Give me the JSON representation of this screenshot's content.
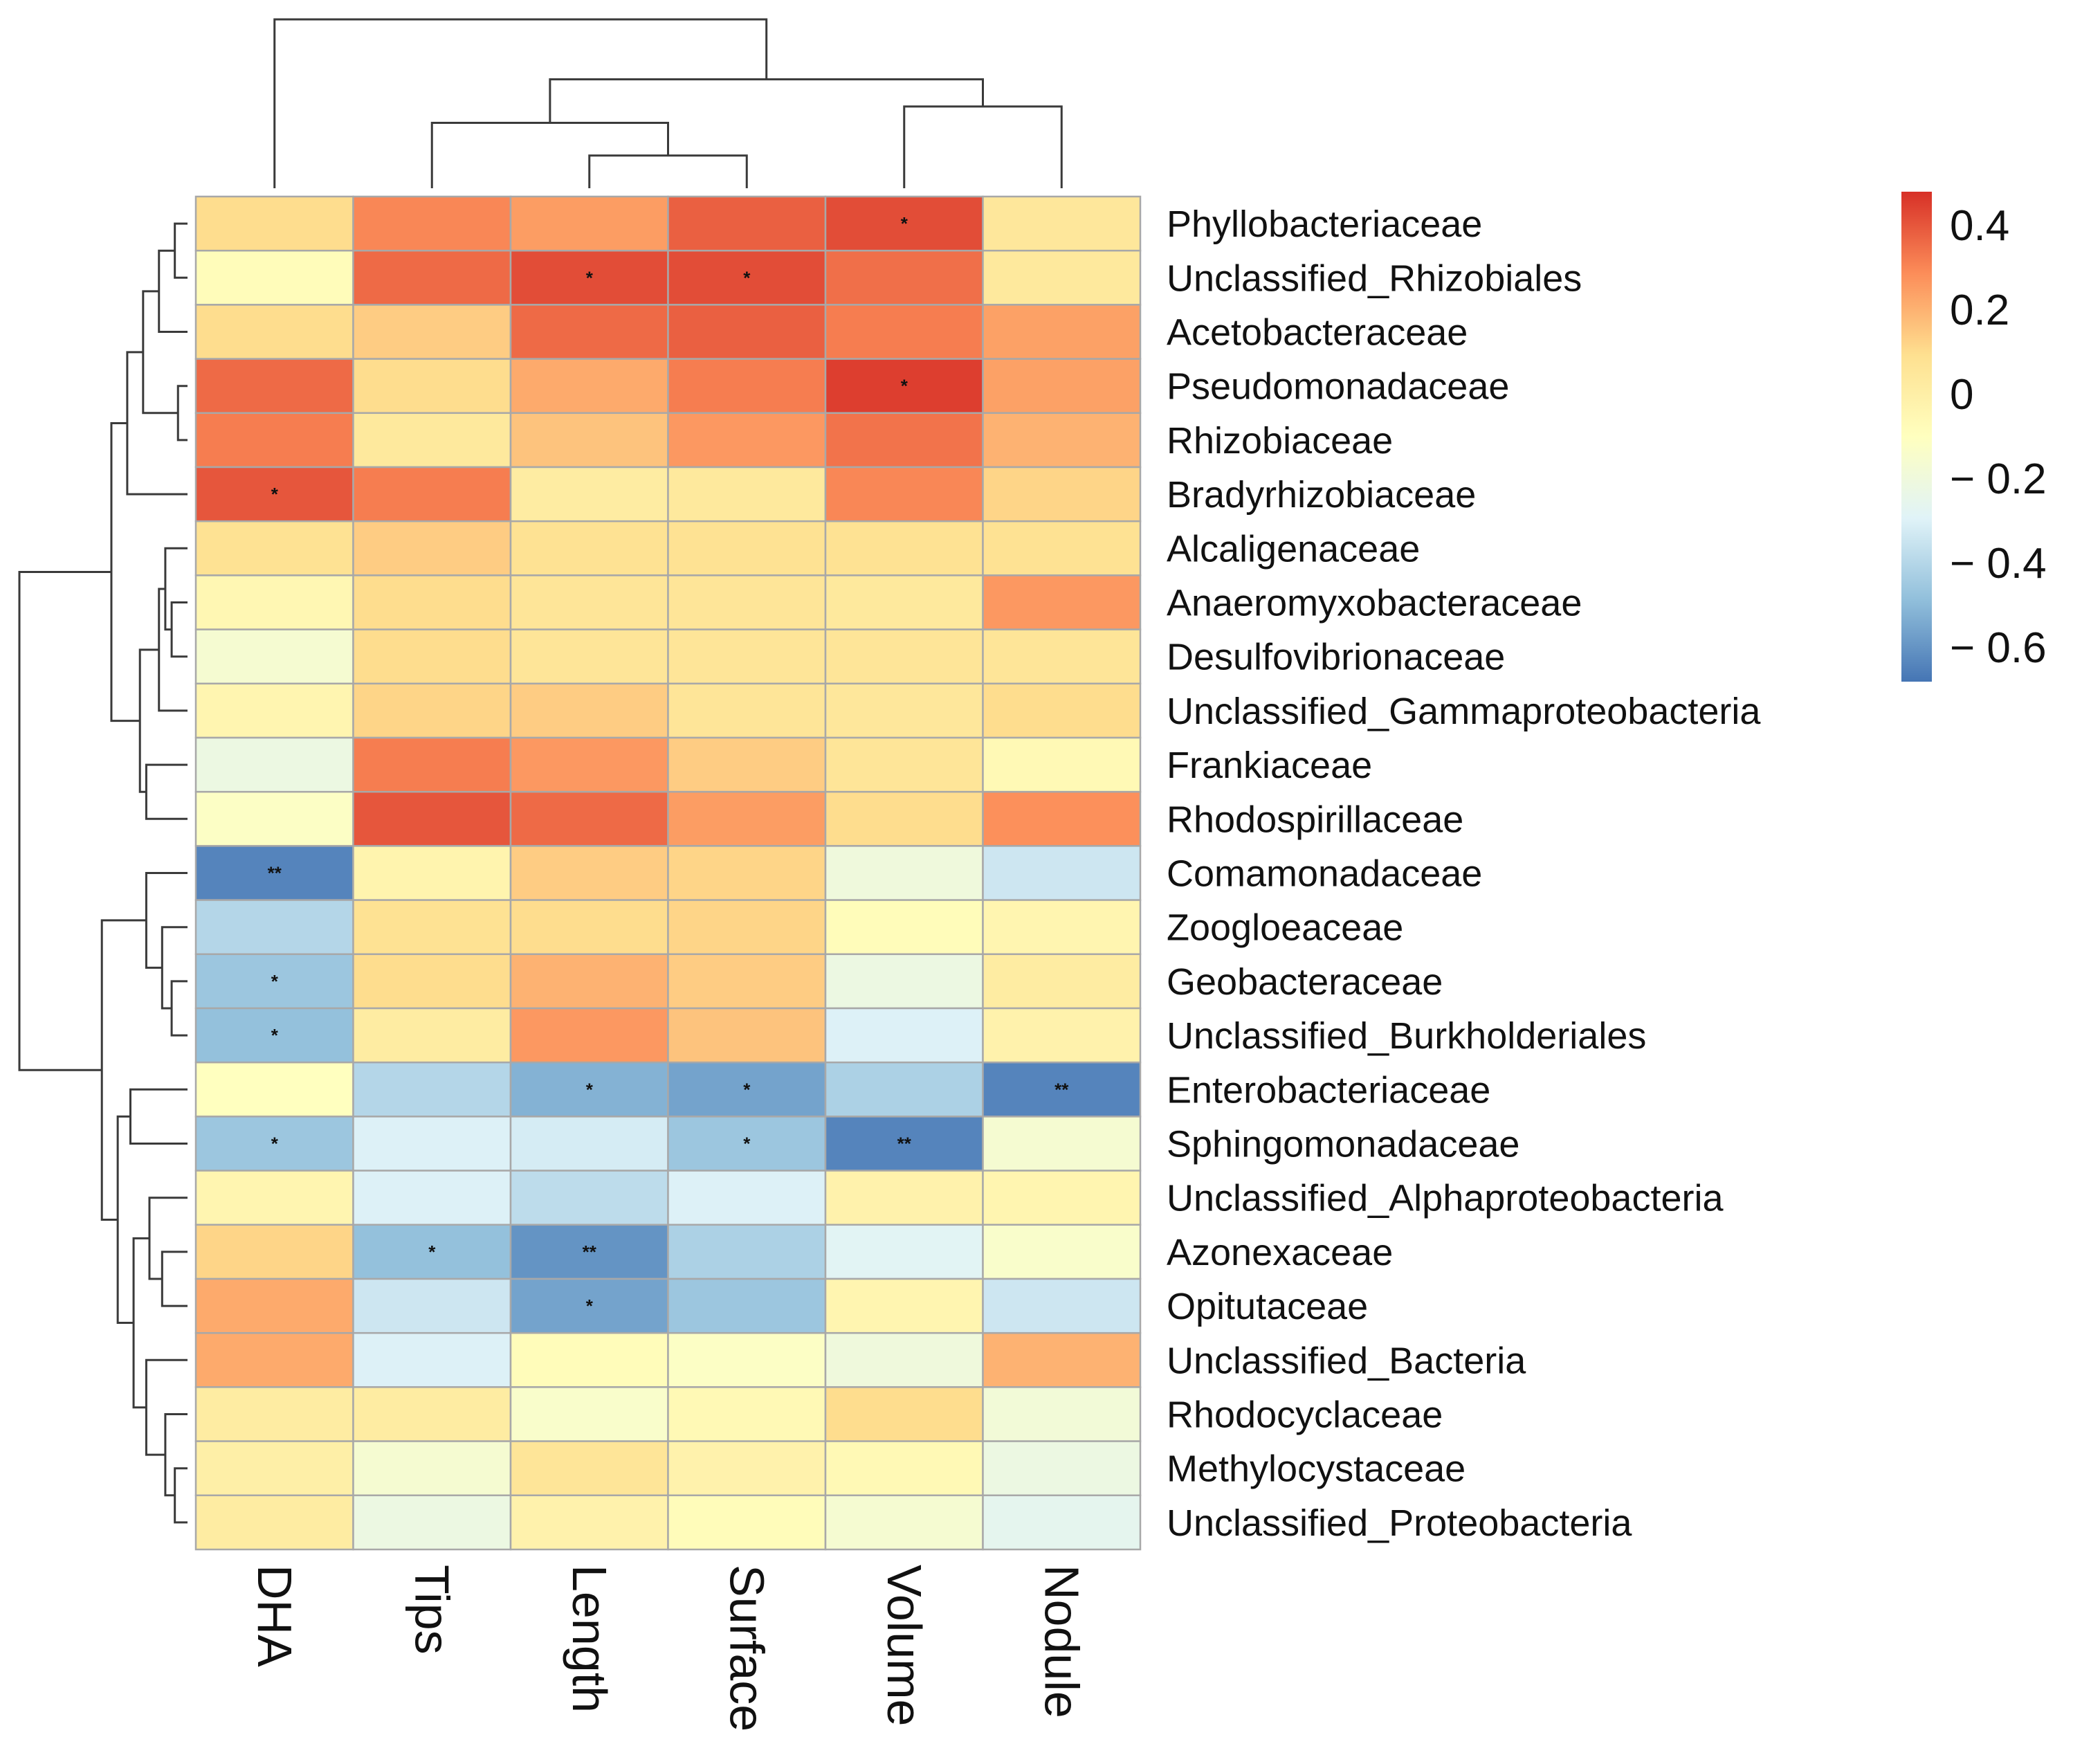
{
  "chart_data": {
    "type": "heatmap",
    "title": "",
    "columns": [
      "DHA",
      "Tips",
      "Length",
      "Surface",
      "Volume",
      "Nodule"
    ],
    "rows": [
      "Phyllobacteriaceae",
      "Unclassified_Rhizobiales",
      "Acetobacteraceae",
      "Pseudomonadaceae",
      "Rhizobiaceae",
      "Bradyrhizobiaceae",
      "Alcaligenaceae",
      "Anaeromyxobacteraceae",
      "Desulfovibrionaceae",
      "Unclassified_Gammaproteobacteria",
      "Frankiaceae",
      "Rhodospirillaceae",
      "Comamonadaceae",
      "Zoogloeaceae",
      "Geobacteraceae",
      "Unclassified_Burkholderiales",
      "Enterobacteriaceae",
      "Sphingomonadaceae",
      "Unclassified_Alphaproteobacteria",
      "Azonexaceae",
      "Opitutaceae",
      "Unclassified_Bacteria",
      "Rhodocyclaceae",
      "Methylocystaceae",
      "Unclassified_Proteobacteria"
    ],
    "values": [
      [
        0.1,
        0.3,
        0.25,
        0.38,
        0.42,
        0.05
      ],
      [
        -0.08,
        0.36,
        0.42,
        0.42,
        0.35,
        0.04
      ],
      [
        0.1,
        0.14,
        0.36,
        0.38,
        0.32,
        0.24
      ],
      [
        0.36,
        0.1,
        0.22,
        0.32,
        0.45,
        0.24
      ],
      [
        0.32,
        0.04,
        0.16,
        0.26,
        0.34,
        0.2
      ],
      [
        0.4,
        0.32,
        0.02,
        0.04,
        0.3,
        0.12
      ],
      [
        0.08,
        0.14,
        0.08,
        0.08,
        0.08,
        0.08
      ],
      [
        -0.05,
        0.1,
        0.06,
        0.06,
        0.04,
        0.26
      ],
      [
        -0.16,
        0.1,
        0.06,
        0.06,
        0.06,
        0.06
      ],
      [
        -0.04,
        0.12,
        0.14,
        0.06,
        0.05,
        0.1
      ],
      [
        -0.22,
        0.32,
        0.26,
        0.14,
        0.06,
        -0.06
      ],
      [
        -0.12,
        0.4,
        0.36,
        0.25,
        0.1,
        0.28
      ],
      [
        -0.64,
        -0.03,
        0.14,
        0.12,
        -0.2,
        -0.34
      ],
      [
        -0.4,
        0.08,
        0.1,
        0.12,
        -0.08,
        -0.04
      ],
      [
        -0.46,
        0.1,
        0.2,
        0.14,
        -0.22,
        0.02
      ],
      [
        -0.48,
        0.02,
        0.26,
        0.16,
        -0.3,
        -0.02
      ],
      [
        -0.1,
        -0.4,
        -0.52,
        -0.56,
        -0.42,
        -0.64
      ],
      [
        -0.46,
        -0.3,
        -0.32,
        -0.46,
        -0.64,
        -0.16
      ],
      [
        -0.04,
        -0.3,
        -0.38,
        -0.3,
        -0.02,
        -0.04
      ],
      [
        0.12,
        -0.48,
        -0.6,
        -0.42,
        -0.28,
        -0.14
      ],
      [
        0.22,
        -0.34,
        -0.56,
        -0.46,
        -0.04,
        -0.34
      ],
      [
        0.22,
        -0.3,
        -0.08,
        -0.12,
        -0.2,
        0.2
      ],
      [
        0.02,
        0.02,
        -0.14,
        -0.06,
        0.1,
        -0.18
      ],
      [
        0.0,
        -0.16,
        0.06,
        -0.02,
        -0.06,
        -0.22
      ],
      [
        0.02,
        -0.22,
        -0.02,
        -0.08,
        -0.16,
        -0.26
      ]
    ],
    "significance": [
      [
        "",
        "",
        "",
        "",
        "*",
        ""
      ],
      [
        "",
        "",
        "*",
        "*",
        "",
        ""
      ],
      [
        "",
        "",
        "",
        "",
        "",
        ""
      ],
      [
        "",
        "",
        "",
        "",
        "*",
        ""
      ],
      [
        "",
        "",
        "",
        "",
        "",
        ""
      ],
      [
        "*",
        "",
        "",
        "",
        "",
        ""
      ],
      [
        "",
        "",
        "",
        "",
        "",
        ""
      ],
      [
        "",
        "",
        "",
        "",
        "",
        ""
      ],
      [
        "",
        "",
        "",
        "",
        "",
        ""
      ],
      [
        "",
        "",
        "",
        "",
        "",
        ""
      ],
      [
        "",
        "",
        "",
        "",
        "",
        ""
      ],
      [
        "",
        "",
        "",
        "",
        "",
        ""
      ],
      [
        "**",
        "",
        "",
        "",
        "",
        ""
      ],
      [
        "",
        "",
        "",
        "",
        "",
        ""
      ],
      [
        "*",
        "",
        "",
        "",
        "",
        ""
      ],
      [
        "*",
        "",
        "",
        "",
        "",
        ""
      ],
      [
        "",
        "",
        "*",
        "*",
        "",
        "**"
      ],
      [
        "*",
        "",
        "",
        "*",
        "**",
        ""
      ],
      [
        "",
        "",
        "",
        "",
        "",
        ""
      ],
      [
        "",
        "*",
        "**",
        "",
        "",
        ""
      ],
      [
        "",
        "",
        "*",
        "",
        "",
        ""
      ],
      [
        "",
        "",
        "",
        "",
        "",
        ""
      ],
      [
        "",
        "",
        "",
        "",
        "",
        ""
      ],
      [
        "",
        "",
        "",
        "",
        "",
        ""
      ],
      [
        "",
        "",
        "",
        "",
        "",
        ""
      ]
    ],
    "colorbar": {
      "range": [
        -0.68,
        0.48
      ],
      "ticks": [
        0.4,
        0.2,
        0,
        -0.2,
        -0.4,
        -0.6
      ],
      "tick_labels": [
        "0.4",
        "0.2",
        "0",
        "− 0.2",
        "− 0.4",
        "− 0.6"
      ],
      "colors": [
        "#4575b4",
        "#91bfdb",
        "#e0f3f8",
        "#ffffbf",
        "#fee090",
        "#fc8d59",
        "#d73027"
      ]
    },
    "column_dendrogram": [
      [
        2,
        3,
        0.12
      ],
      [
        1,
        6,
        0.24
      ],
      [
        4,
        5,
        0.3
      ],
      [
        7,
        8,
        0.4
      ],
      [
        0,
        9,
        0.62
      ]
    ],
    "row_dendrogram": [
      [
        0,
        1,
        0.04
      ],
      [
        25,
        2,
        0.09
      ],
      [
        3,
        4,
        0.03
      ],
      [
        26,
        27,
        0.14
      ],
      [
        28,
        5,
        0.19
      ],
      [
        7,
        8,
        0.05
      ],
      [
        6,
        30,
        0.07
      ],
      [
        31,
        9,
        0.09
      ],
      [
        10,
        11,
        0.13
      ],
      [
        32,
        33,
        0.15
      ],
      [
        29,
        34,
        0.24
      ],
      [
        14,
        15,
        0.05
      ],
      [
        13,
        36,
        0.08
      ],
      [
        12,
        37,
        0.13
      ],
      [
        16,
        17,
        0.18
      ],
      [
        19,
        20,
        0.08
      ],
      [
        18,
        40,
        0.12
      ],
      [
        23,
        24,
        0.04
      ],
      [
        22,
        42,
        0.07
      ],
      [
        21,
        43,
        0.13
      ],
      [
        41,
        44,
        0.17
      ],
      [
        39,
        45,
        0.22
      ],
      [
        38,
        46,
        0.27
      ],
      [
        35,
        47,
        0.53
      ]
    ]
  }
}
